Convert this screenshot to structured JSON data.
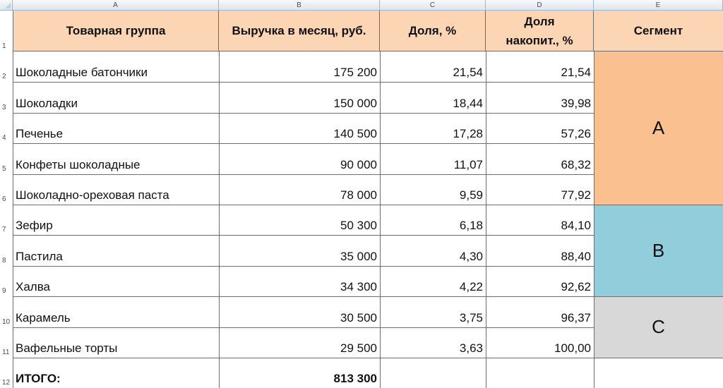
{
  "columns": [
    "A",
    "B",
    "C",
    "D",
    "E"
  ],
  "header": {
    "group": "Товарная группа",
    "revenue": "Выручка в месяц, руб.",
    "share": "Доля, %",
    "cum_share_line1": "Доля",
    "cum_share_line2": "накопит., %",
    "segment": "Сегмент"
  },
  "rows": [
    {
      "num": "2",
      "group": "Шоколадные батончики",
      "revenue": "175 200",
      "share": "21,54",
      "cum": "21,54"
    },
    {
      "num": "3",
      "group": "Шоколадки",
      "revenue": "150 000",
      "share": "18,44",
      "cum": "39,98"
    },
    {
      "num": "4",
      "group": "Печенье",
      "revenue": "140 500",
      "share": "17,28",
      "cum": "57,26"
    },
    {
      "num": "5",
      "group": "Конфеты шоколадные",
      "revenue": "90 000",
      "share": "11,07",
      "cum": "68,32"
    },
    {
      "num": "6",
      "group": "Шоколадно-ореховая паста",
      "revenue": "78 000",
      "share": "9,59",
      "cum": "77,92"
    },
    {
      "num": "7",
      "group": "Зефир",
      "revenue": "50 300",
      "share": "6,18",
      "cum": "84,10"
    },
    {
      "num": "8",
      "group": "Пастила",
      "revenue": "35 000",
      "share": "4,30",
      "cum": "88,40"
    },
    {
      "num": "9",
      "group": "Халва",
      "revenue": "34 300",
      "share": "4,22",
      "cum": "92,62"
    },
    {
      "num": "10",
      "group": "Карамель",
      "revenue": "30 500",
      "share": "3,75",
      "cum": "96,37"
    },
    {
      "num": "11",
      "group": "Вафельные торты",
      "revenue": "29 500",
      "share": "3,63",
      "cum": "100,00"
    }
  ],
  "header_row_num": "1",
  "total": {
    "num": "12",
    "label": "ИТОГО:",
    "revenue": "813 300"
  },
  "segments": [
    {
      "label": "A",
      "color": "#fac090"
    },
    {
      "label": "B",
      "color": "#92cddc"
    },
    {
      "label": "C",
      "color": "#d8d8d8"
    }
  ],
  "colors": {
    "header_fill": "#fcd5b5",
    "grid": "#6d6d6d",
    "col_header": "#dfe6ee"
  }
}
